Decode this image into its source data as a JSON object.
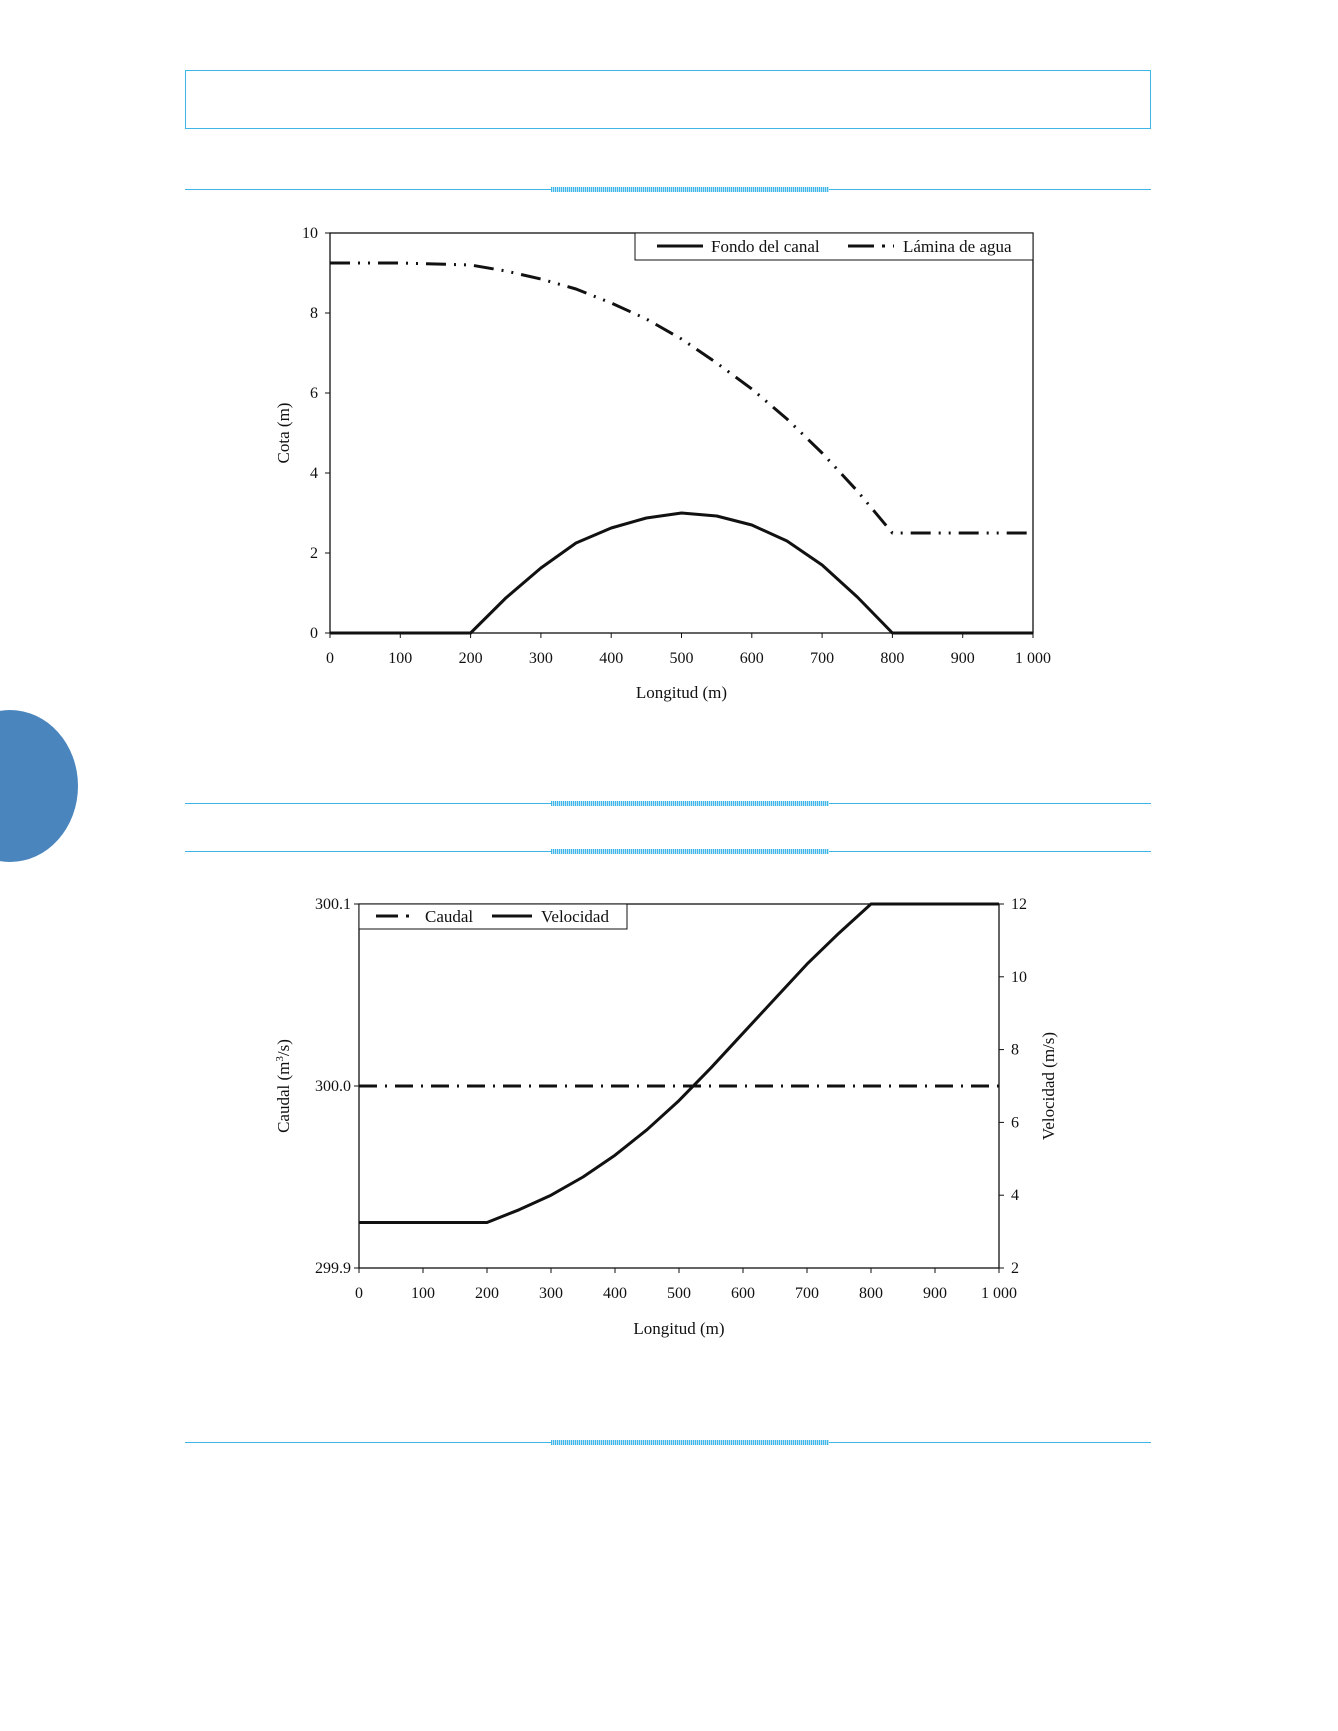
{
  "chart_data": [
    {
      "type": "line",
      "xlabel": "Longitud (m)",
      "ylabel": "Cota (m)",
      "xlim": [
        0,
        1000
      ],
      "ylim": [
        0,
        10
      ],
      "x_ticks": [
        0,
        100,
        200,
        300,
        400,
        500,
        600,
        700,
        800,
        900,
        1000
      ],
      "x_tick_labels": [
        "0",
        "100",
        "200",
        "300",
        "400",
        "500",
        "600",
        "700",
        "800",
        "900",
        "1 000"
      ],
      "y_ticks": [
        0,
        2,
        4,
        6,
        8,
        10
      ],
      "y_tick_labels": [
        "0",
        "2",
        "4",
        "6",
        "8",
        "10"
      ],
      "grid": false,
      "legend_position": "top-right",
      "series": [
        {
          "name": "Fondo del canal",
          "style": "solid",
          "x": [
            0,
            200,
            250,
            300,
            350,
            400,
            450,
            500,
            550,
            600,
            650,
            700,
            750,
            800,
            900,
            1000
          ],
          "y": [
            0,
            0,
            0.875,
            1.625,
            2.25,
            2.625,
            2.875,
            3.0,
            2.925,
            2.7,
            2.3,
            1.7,
            0.9,
            0,
            0,
            0
          ]
        },
        {
          "name": "Lámina de agua",
          "style": "dash-dot-dot",
          "x": [
            0,
            100,
            200,
            250,
            300,
            350,
            400,
            450,
            500,
            550,
            600,
            650,
            700,
            750,
            800,
            850,
            900,
            1000
          ],
          "y": [
            9.25,
            9.25,
            9.2,
            9.05,
            8.85,
            8.6,
            8.25,
            7.85,
            7.35,
            6.75,
            6.1,
            5.35,
            4.5,
            3.55,
            2.5,
            2.5,
            2.5,
            2.5
          ]
        }
      ]
    },
    {
      "type": "line",
      "xlabel": "Longitud (m)",
      "ylabel": "Caudal (m3/s)",
      "y2label": "Velocidad (m/s)",
      "xlim": [
        0,
        1000
      ],
      "ylim": [
        299.9,
        300.1
      ],
      "y2lim": [
        2,
        12
      ],
      "x_ticks": [
        0,
        100,
        200,
        300,
        400,
        500,
        600,
        700,
        800,
        900,
        1000
      ],
      "x_tick_labels": [
        "0",
        "100",
        "200",
        "300",
        "400",
        "500",
        "600",
        "700",
        "800",
        "900",
        "1 000"
      ],
      "y_ticks": [
        299.9,
        300.0,
        300.1
      ],
      "y_tick_labels": [
        "299.9",
        "300.0",
        "300.1"
      ],
      "y2_ticks": [
        2,
        4,
        6,
        8,
        10,
        12
      ],
      "y2_tick_labels": [
        "2",
        "4",
        "6",
        "8",
        "10",
        "12"
      ],
      "grid": false,
      "legend_position": "top-left",
      "series": [
        {
          "name": "Caudal",
          "style": "dash-dot",
          "axis": "left",
          "x": [
            0,
            1000
          ],
          "y": [
            300.0,
            300.0
          ]
        },
        {
          "name": "Velocidad",
          "style": "solid",
          "axis": "right",
          "x": [
            0,
            100,
            200,
            250,
            300,
            350,
            400,
            450,
            500,
            550,
            600,
            650,
            700,
            750,
            800,
            900,
            1000
          ],
          "y": [
            3.25,
            3.25,
            3.25,
            3.6,
            4.0,
            4.5,
            5.1,
            5.8,
            6.6,
            7.5,
            8.45,
            9.4,
            10.35,
            11.2,
            12.0,
            12.0,
            12.0
          ]
        }
      ]
    }
  ],
  "fig2_ylabel_parts": {
    "pre": "Caudal (m",
    "sup": "3",
    "post": "/s)"
  },
  "colors": {
    "accent_rule": "#3fb6e8",
    "side_tab": "#4a86bd",
    "ink": "#111111"
  }
}
